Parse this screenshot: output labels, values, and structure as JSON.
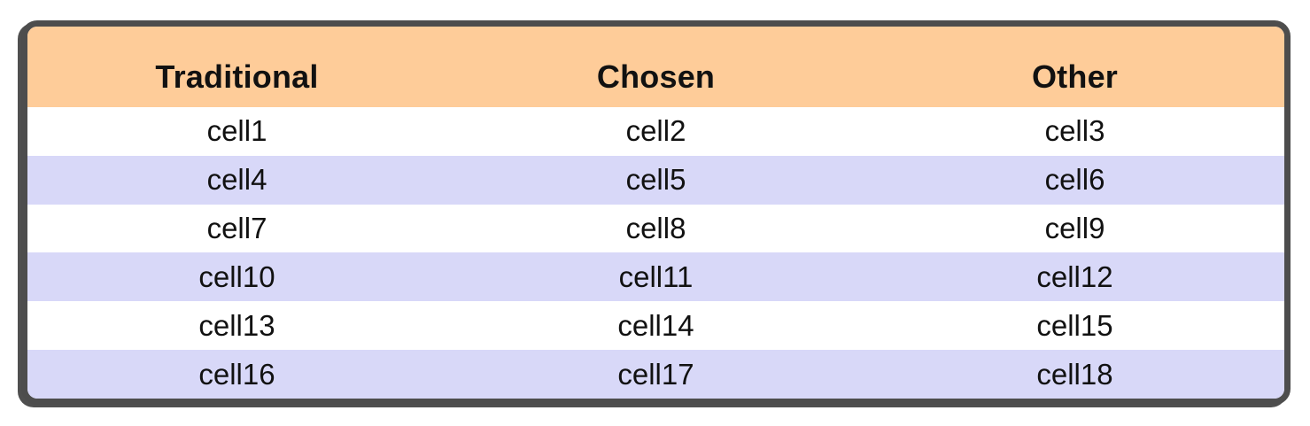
{
  "table": {
    "columns": [
      "Traditional",
      "Chosen",
      "Other"
    ],
    "rows": [
      [
        "cell1",
        "cell2",
        "cell3"
      ],
      [
        "cell4",
        "cell5",
        "cell6"
      ],
      [
        "cell7",
        "cell8",
        "cell9"
      ],
      [
        "cell10",
        "cell11",
        "cell12"
      ],
      [
        "cell13",
        "cell14",
        "cell15"
      ],
      [
        "cell16",
        "cell17",
        "cell18"
      ]
    ],
    "colors": {
      "header_bg": "#FECC99",
      "row_bg": "#FFFFFF",
      "row_alt_bg": "#D8D8F8",
      "frame_border": "#4D4D4D",
      "text": "#111111"
    }
  }
}
